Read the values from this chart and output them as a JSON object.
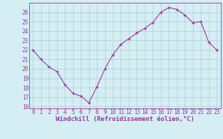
{
  "x": [
    0,
    1,
    2,
    3,
    4,
    5,
    6,
    7,
    8,
    9,
    10,
    11,
    12,
    13,
    14,
    15,
    16,
    17,
    18,
    19,
    20,
    21,
    22,
    23
  ],
  "y": [
    22,
    21,
    20.2,
    19.7,
    18.3,
    17.4,
    17.1,
    16.4,
    18.1,
    20.0,
    21.5,
    22.6,
    23.2,
    23.8,
    24.3,
    24.9,
    26.0,
    26.5,
    26.3,
    25.7,
    24.9,
    25.0,
    22.8,
    22.0
  ],
  "ylim": [
    15.8,
    27.0
  ],
  "xlim": [
    -0.5,
    23.5
  ],
  "yticks": [
    16,
    17,
    18,
    19,
    20,
    21,
    22,
    23,
    24,
    25,
    26
  ],
  "xticks": [
    0,
    1,
    2,
    3,
    4,
    5,
    6,
    7,
    8,
    9,
    10,
    11,
    12,
    13,
    14,
    15,
    16,
    17,
    18,
    19,
    20,
    21,
    22,
    23
  ],
  "xlabel": "Windchill (Refroidissement éolien,°C)",
  "line_color": "#993399",
  "bg_color": "#d4eef4",
  "grid_color": "#aacccc",
  "tick_color": "#993399",
  "label_color": "#993399",
  "font": "monospace",
  "tick_fontsize": 5.5,
  "label_fontsize": 6.5
}
